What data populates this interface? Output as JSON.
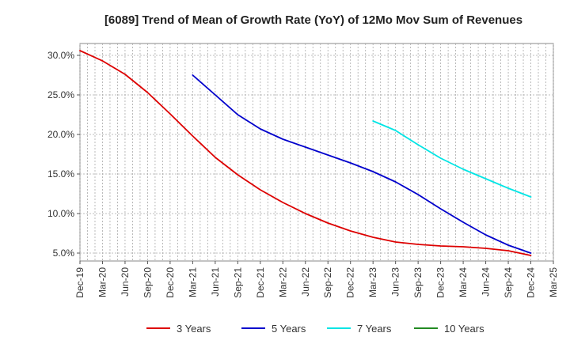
{
  "chart_data": {
    "type": "line",
    "title": "[6089]  Trend of Mean of Growth Rate (YoY) of 12Mo Mov Sum of Revenues",
    "xlabel": "",
    "ylabel": "",
    "x_tick_labels": [
      "Dec-19",
      "Mar-20",
      "Jun-20",
      "Sep-20",
      "Dec-20",
      "Mar-21",
      "Jun-21",
      "Sep-21",
      "Dec-21",
      "Mar-22",
      "Jun-22",
      "Sep-22",
      "Dec-22",
      "Mar-23",
      "Jun-23",
      "Sep-23",
      "Dec-23",
      "Mar-24",
      "Jun-24",
      "Sep-24",
      "Dec-24",
      "Mar-25"
    ],
    "y_tick_labels": [
      "5.0%",
      "10.0%",
      "15.0%",
      "20.0%",
      "25.0%",
      "30.0%"
    ],
    "y_ticks": [
      5,
      10,
      15,
      20,
      25,
      30
    ],
    "ylim": [
      4.0,
      31.5
    ],
    "x_range_quarters": [
      0,
      21
    ],
    "grid": true,
    "legend_position": "bottom",
    "series": [
      {
        "name": "3 Years",
        "color": "#dd0000",
        "x": [
          0,
          1,
          2,
          3,
          4,
          5,
          6,
          7,
          8,
          9,
          10,
          11,
          12,
          13,
          14,
          15,
          16,
          17,
          18,
          19,
          20
        ],
        "values": [
          30.6,
          29.3,
          27.6,
          25.3,
          22.6,
          19.8,
          17.1,
          14.9,
          13.0,
          11.4,
          10.0,
          8.8,
          7.8,
          7.0,
          6.4,
          6.1,
          5.9,
          5.8,
          5.6,
          5.3,
          4.7
        ]
      },
      {
        "name": "5 Years",
        "color": "#0000cc",
        "x": [
          5,
          6,
          7,
          8,
          9,
          10,
          11,
          12,
          13,
          14,
          15,
          16,
          17,
          18,
          19,
          20
        ],
        "values": [
          27.5,
          25.0,
          22.5,
          20.7,
          19.4,
          18.4,
          17.4,
          16.4,
          15.3,
          14.0,
          12.4,
          10.6,
          8.9,
          7.3,
          6.0,
          5.0
        ]
      },
      {
        "name": "7 Years",
        "color": "#00e5e5",
        "x": [
          13,
          14,
          15,
          16,
          17,
          18,
          19,
          20
        ],
        "values": [
          21.7,
          20.5,
          18.7,
          17.0,
          15.6,
          14.4,
          13.2,
          12.1
        ]
      },
      {
        "name": "10 Years",
        "color": "#228b22",
        "x": [],
        "values": []
      }
    ]
  }
}
